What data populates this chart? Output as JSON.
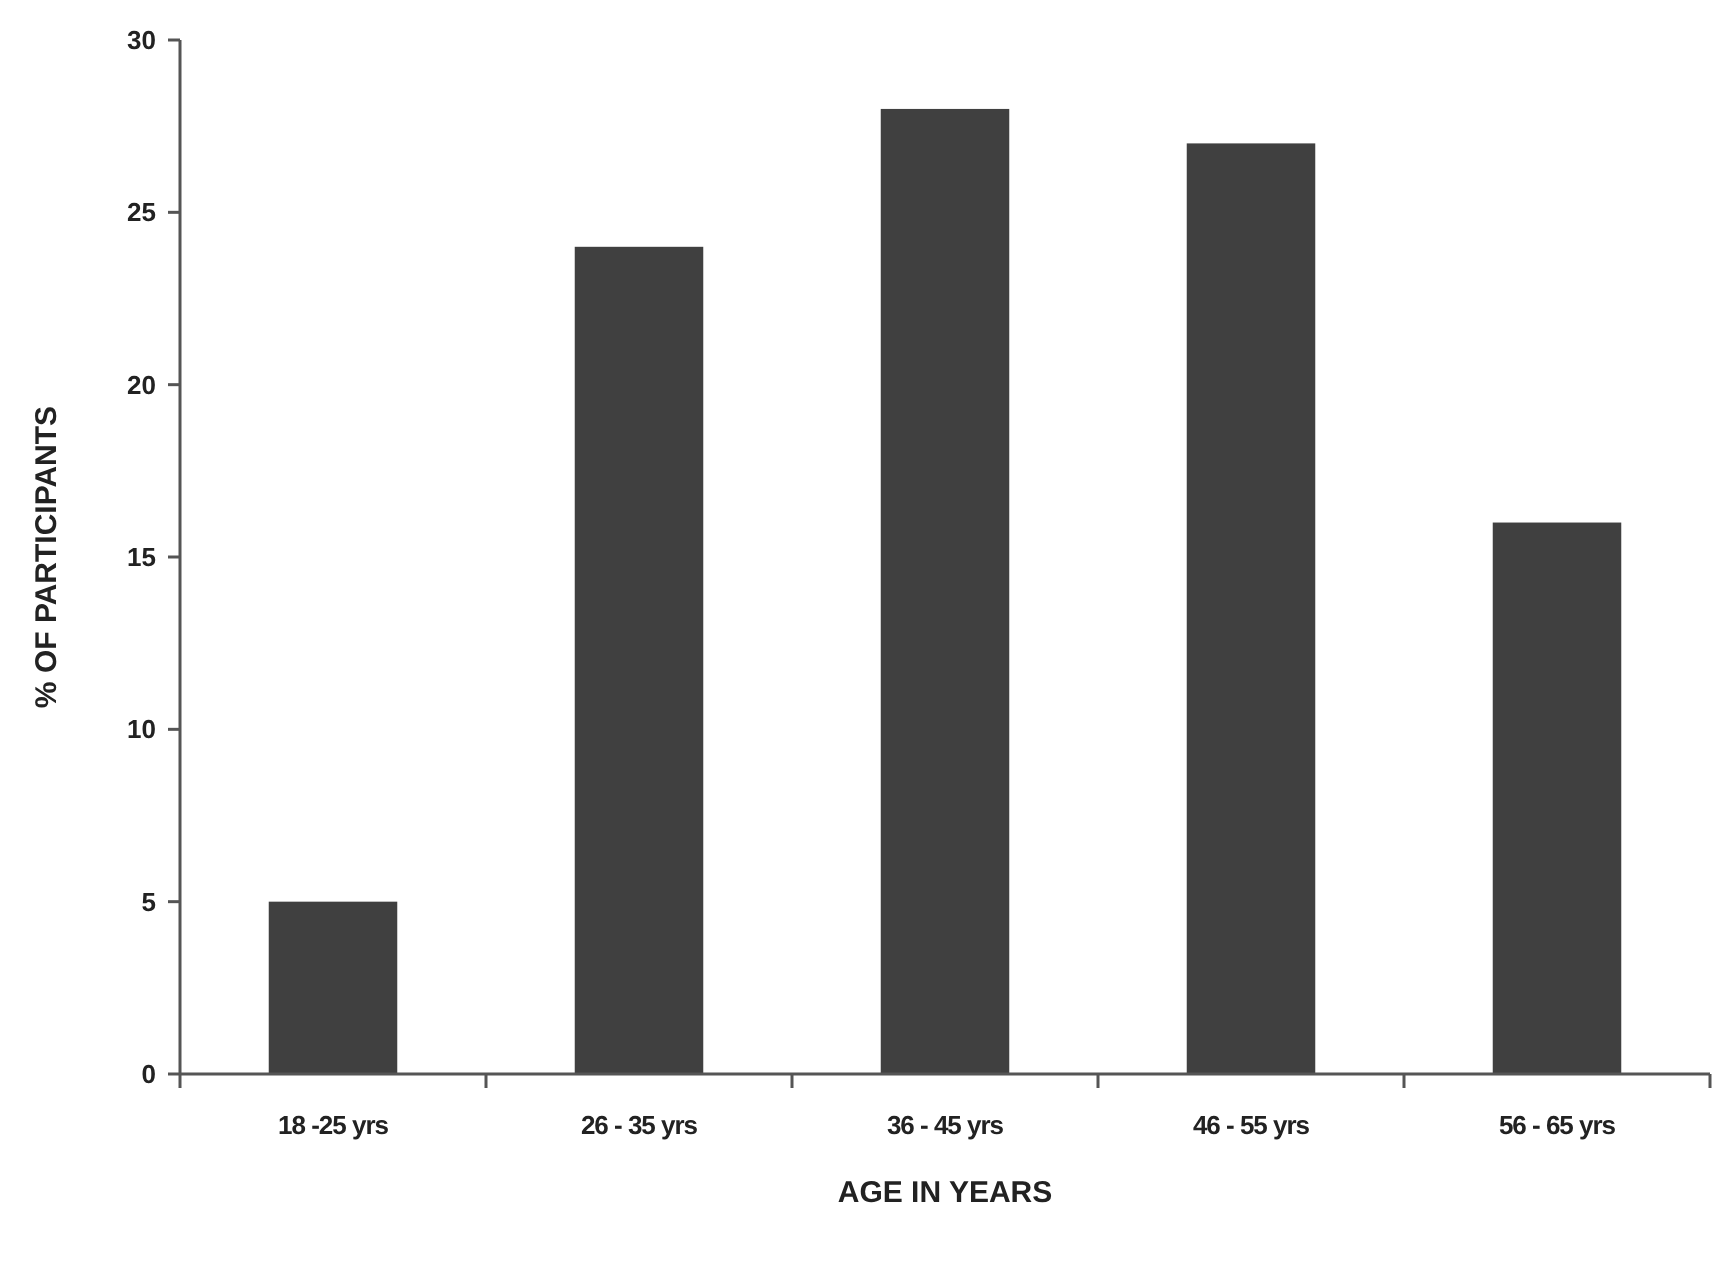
{
  "chart_data": {
    "type": "bar",
    "xlabel": "AGE IN YEARS",
    "ylabel": "% OF PARTICIPANTS",
    "categories": [
      "18 -25 yrs",
      "26 - 35 yrs",
      "36 - 45 yrs",
      "46 - 55 yrs",
      "56 - 65 yrs"
    ],
    "values": [
      5,
      24,
      28,
      27,
      16
    ],
    "color": "#404040",
    "ylim": [
      0,
      30
    ],
    "yticks": [
      0,
      5,
      10,
      15,
      20,
      25,
      30
    ],
    "grid": false
  }
}
